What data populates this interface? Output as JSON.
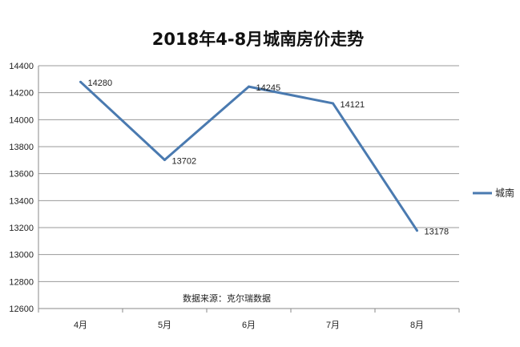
{
  "chart_data": {
    "type": "line",
    "title": "2018年4-8月城南房价走势",
    "xlabel": "",
    "ylabel": "",
    "categories": [
      "4月",
      "5月",
      "6月",
      "7月",
      "8月"
    ],
    "series": [
      {
        "name": "城南",
        "values": [
          14280,
          13702,
          14245,
          14121,
          13178
        ],
        "color": "#4a7ab0"
      }
    ],
    "data_labels": [
      "14280",
      "13702",
      "14245",
      "14121",
      "13178"
    ],
    "ylim": [
      12600,
      14400
    ],
    "yticks": [
      12600,
      12800,
      13000,
      13200,
      13400,
      13600,
      13800,
      14000,
      14200,
      14400
    ],
    "grid": true,
    "legend_position": "right",
    "source_note": "数据来源：克尔瑞数据"
  }
}
